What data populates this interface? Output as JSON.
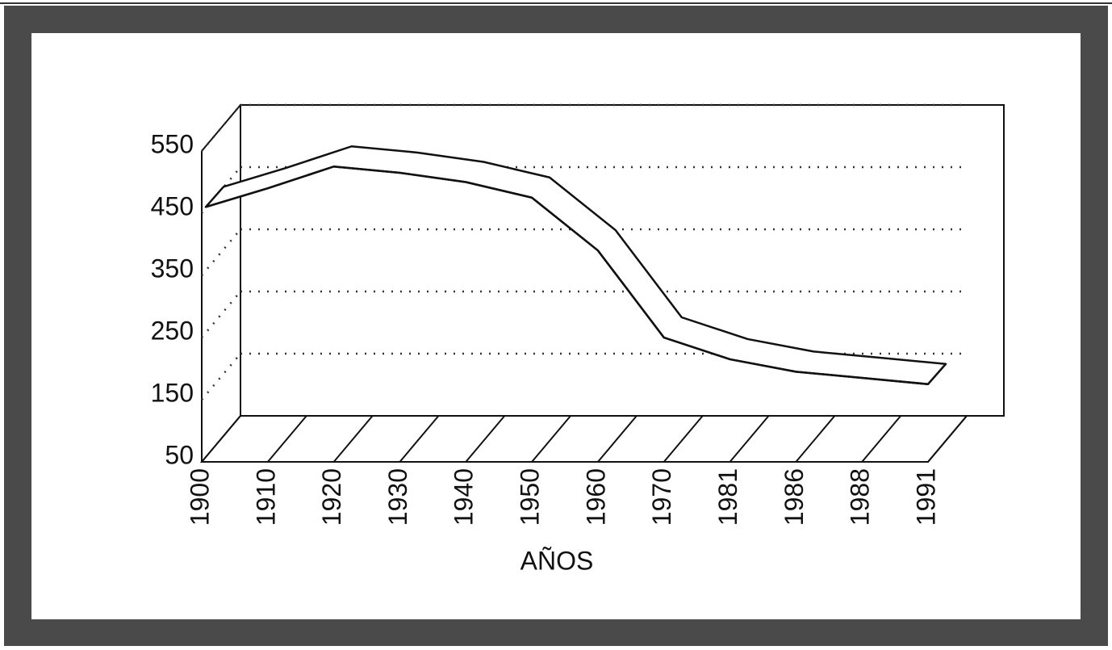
{
  "chart_data": {
    "type": "line",
    "x_label": "AÑOS",
    "categories": [
      "1900",
      "1910",
      "1920",
      "1930",
      "1940",
      "1950",
      "1960",
      "1970",
      "1981",
      "1986",
      "1988",
      "1991"
    ],
    "values": [
      460,
      490,
      525,
      515,
      500,
      475,
      390,
      250,
      215,
      195,
      185,
      175
    ],
    "color": "#ffffff",
    "ylim": [
      50,
      550
    ],
    "yticks": [
      50,
      150,
      250,
      350,
      450,
      550
    ],
    "grid": true
  }
}
